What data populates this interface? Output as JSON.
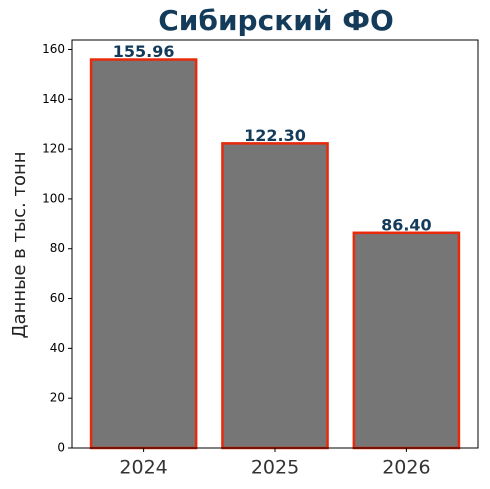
{
  "chart_data": {
    "type": "bar",
    "title": "Сибирский ФО",
    "y_label": "Данные в тыс. тонн",
    "categories": [
      "2024",
      "2025",
      "2026"
    ],
    "values": [
      155.96,
      122.3,
      86.4
    ],
    "value_labels": [
      "155.96",
      "122.30",
      "86.40"
    ],
    "color": "#767676",
    "edge_color": "#e8290b",
    "label_color": "#143c5a",
    "ylim": [
      0,
      163.8
    ],
    "yticks": [
      0,
      20,
      40,
      60,
      80,
      100,
      120,
      140,
      160
    ],
    "grid": false
  }
}
